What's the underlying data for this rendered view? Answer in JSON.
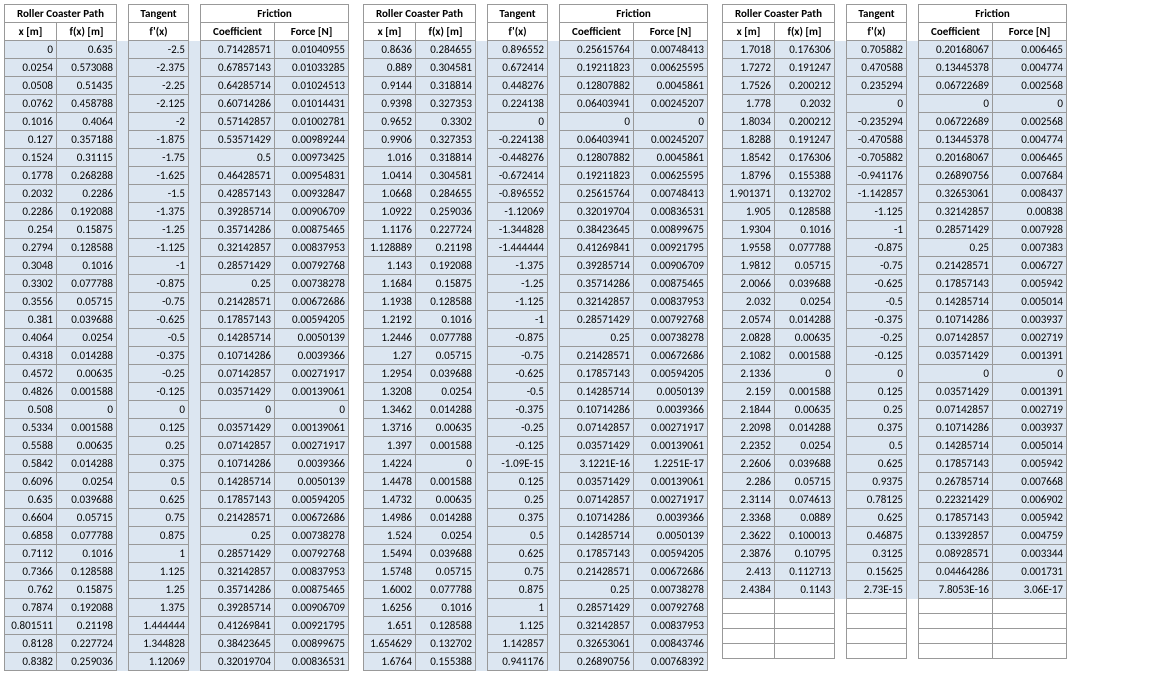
{
  "headers": {
    "roller": "Roller Coaster Path",
    "tangent": "Tangent",
    "friction": "Friction",
    "x": "x [m]",
    "fx": "f(x) [m]",
    "fpx": "f'(x)",
    "coef": "Coefficient",
    "force": "Force [N]"
  },
  "style": {
    "shaded_bg": "#dce6f1",
    "border": "#999999",
    "font": "Calibri",
    "font_size": 11
  },
  "blocks": [
    {
      "rows": [
        [
          "0",
          "0.635",
          "-2.5",
          "0.71428571",
          "0.01040955"
        ],
        [
          "0.0254",
          "0.573088",
          "-2.375",
          "0.67857143",
          "0.01033285"
        ],
        [
          "0.0508",
          "0.51435",
          "-2.25",
          "0.64285714",
          "0.01024513"
        ],
        [
          "0.0762",
          "0.458788",
          "-2.125",
          "0.60714286",
          "0.01014431"
        ],
        [
          "0.1016",
          "0.4064",
          "-2",
          "0.57142857",
          "0.01002781"
        ],
        [
          "0.127",
          "0.357188",
          "-1.875",
          "0.53571429",
          "0.00989244"
        ],
        [
          "0.1524",
          "0.31115",
          "-1.75",
          "0.5",
          "0.00973425"
        ],
        [
          "0.1778",
          "0.268288",
          "-1.625",
          "0.46428571",
          "0.00954831"
        ],
        [
          "0.2032",
          "0.2286",
          "-1.5",
          "0.42857143",
          "0.00932847"
        ],
        [
          "0.2286",
          "0.192088",
          "-1.375",
          "0.39285714",
          "0.00906709"
        ],
        [
          "0.254",
          "0.15875",
          "-1.25",
          "0.35714286",
          "0.00875465"
        ],
        [
          "0.2794",
          "0.128588",
          "-1.125",
          "0.32142857",
          "0.00837953"
        ],
        [
          "0.3048",
          "0.1016",
          "-1",
          "0.28571429",
          "0.00792768"
        ],
        [
          "0.3302",
          "0.077788",
          "-0.875",
          "0.25",
          "0.00738278"
        ],
        [
          "0.3556",
          "0.05715",
          "-0.75",
          "0.21428571",
          "0.00672686"
        ],
        [
          "0.381",
          "0.039688",
          "-0.625",
          "0.17857143",
          "0.00594205"
        ],
        [
          "0.4064",
          "0.0254",
          "-0.5",
          "0.14285714",
          "0.0050139"
        ],
        [
          "0.4318",
          "0.014288",
          "-0.375",
          "0.10714286",
          "0.0039366"
        ],
        [
          "0.4572",
          "0.00635",
          "-0.25",
          "0.07142857",
          "0.00271917"
        ],
        [
          "0.4826",
          "0.001588",
          "-0.125",
          "0.03571429",
          "0.00139061"
        ],
        [
          "0.508",
          "0",
          "0",
          "0",
          "0"
        ],
        [
          "0.5334",
          "0.001588",
          "0.125",
          "0.03571429",
          "0.00139061"
        ],
        [
          "0.5588",
          "0.00635",
          "0.25",
          "0.07142857",
          "0.00271917"
        ],
        [
          "0.5842",
          "0.014288",
          "0.375",
          "0.10714286",
          "0.0039366"
        ],
        [
          "0.6096",
          "0.0254",
          "0.5",
          "0.14285714",
          "0.0050139"
        ],
        [
          "0.635",
          "0.039688",
          "0.625",
          "0.17857143",
          "0.00594205"
        ],
        [
          "0.6604",
          "0.05715",
          "0.75",
          "0.21428571",
          "0.00672686"
        ],
        [
          "0.6858",
          "0.077788",
          "0.875",
          "0.25",
          "0.00738278"
        ],
        [
          "0.7112",
          "0.1016",
          "1",
          "0.28571429",
          "0.00792768"
        ],
        [
          "0.7366",
          "0.128588",
          "1.125",
          "0.32142857",
          "0.00837953"
        ],
        [
          "0.762",
          "0.15875",
          "1.25",
          "0.35714286",
          "0.00875465"
        ],
        [
          "0.7874",
          "0.192088",
          "1.375",
          "0.39285714",
          "0.00906709"
        ],
        [
          "0.801511",
          "0.21198",
          "1.444444",
          "0.41269841",
          "0.00921795"
        ],
        [
          "0.8128",
          "0.227724",
          "1.344828",
          "0.38423645",
          "0.00899675"
        ],
        [
          "0.8382",
          "0.259036",
          "1.12069",
          "0.32019704",
          "0.00836531"
        ]
      ]
    },
    {
      "rows": [
        [
          "0.8636",
          "0.284655",
          "0.896552",
          "0.25615764",
          "0.00748413"
        ],
        [
          "0.889",
          "0.304581",
          "0.672414",
          "0.19211823",
          "0.00625595"
        ],
        [
          "0.9144",
          "0.318814",
          "0.448276",
          "0.12807882",
          "0.0045861"
        ],
        [
          "0.9398",
          "0.327353",
          "0.224138",
          "0.06403941",
          "0.00245207"
        ],
        [
          "0.9652",
          "0.3302",
          "0",
          "0",
          "0"
        ],
        [
          "0.9906",
          "0.327353",
          "-0.224138",
          "0.06403941",
          "0.00245207"
        ],
        [
          "1.016",
          "0.318814",
          "-0.448276",
          "0.12807882",
          "0.0045861"
        ],
        [
          "1.0414",
          "0.304581",
          "-0.672414",
          "0.19211823",
          "0.00625595"
        ],
        [
          "1.0668",
          "0.284655",
          "-0.896552",
          "0.25615764",
          "0.00748413"
        ],
        [
          "1.0922",
          "0.259036",
          "-1.12069",
          "0.32019704",
          "0.00836531"
        ],
        [
          "1.1176",
          "0.227724",
          "-1.344828",
          "0.38423645",
          "0.00899675"
        ],
        [
          "1.128889",
          "0.21198",
          "-1.444444",
          "0.41269841",
          "0.00921795"
        ],
        [
          "1.143",
          "0.192088",
          "-1.375",
          "0.39285714",
          "0.00906709"
        ],
        [
          "1.1684",
          "0.15875",
          "-1.25",
          "0.35714286",
          "0.00875465"
        ],
        [
          "1.1938",
          "0.128588",
          "-1.125",
          "0.32142857",
          "0.00837953"
        ],
        [
          "1.2192",
          "0.1016",
          "-1",
          "0.28571429",
          "0.00792768"
        ],
        [
          "1.2446",
          "0.077788",
          "-0.875",
          "0.25",
          "0.00738278"
        ],
        [
          "1.27",
          "0.05715",
          "-0.75",
          "0.21428571",
          "0.00672686"
        ],
        [
          "1.2954",
          "0.039688",
          "-0.625",
          "0.17857143",
          "0.00594205"
        ],
        [
          "1.3208",
          "0.0254",
          "-0.5",
          "0.14285714",
          "0.0050139"
        ],
        [
          "1.3462",
          "0.014288",
          "-0.375",
          "0.10714286",
          "0.0039366"
        ],
        [
          "1.3716",
          "0.00635",
          "-0.25",
          "0.07142857",
          "0.00271917"
        ],
        [
          "1.397",
          "0.001588",
          "-0.125",
          "0.03571429",
          "0.00139061"
        ],
        [
          "1.4224",
          "0",
          "-1.09E-15",
          "3.1221E-16",
          "1.2251E-17"
        ],
        [
          "1.4478",
          "0.001588",
          "0.125",
          "0.03571429",
          "0.00139061"
        ],
        [
          "1.4732",
          "0.00635",
          "0.25",
          "0.07142857",
          "0.00271917"
        ],
        [
          "1.4986",
          "0.014288",
          "0.375",
          "0.10714286",
          "0.0039366"
        ],
        [
          "1.524",
          "0.0254",
          "0.5",
          "0.14285714",
          "0.0050139"
        ],
        [
          "1.5494",
          "0.039688",
          "0.625",
          "0.17857143",
          "0.00594205"
        ],
        [
          "1.5748",
          "0.05715",
          "0.75",
          "0.21428571",
          "0.00672686"
        ],
        [
          "1.6002",
          "0.077788",
          "0.875",
          "0.25",
          "0.00738278"
        ],
        [
          "1.6256",
          "0.1016",
          "1",
          "0.28571429",
          "0.00792768"
        ],
        [
          "1.651",
          "0.128588",
          "1.125",
          "0.32142857",
          "0.00837953"
        ],
        [
          "1.654629",
          "0.132702",
          "1.142857",
          "0.32653061",
          "0.00843746"
        ],
        [
          "1.6764",
          "0.155388",
          "0.941176",
          "0.26890756",
          "0.00768392"
        ]
      ]
    },
    {
      "rows": [
        [
          "1.7018",
          "0.176306",
          "0.705882",
          "0.20168067",
          "0.006465"
        ],
        [
          "1.7272",
          "0.191247",
          "0.470588",
          "0.13445378",
          "0.004774"
        ],
        [
          "1.7526",
          "0.200212",
          "0.235294",
          "0.06722689",
          "0.002568"
        ],
        [
          "1.778",
          "0.2032",
          "0",
          "0",
          "0"
        ],
        [
          "1.8034",
          "0.200212",
          "-0.235294",
          "0.06722689",
          "0.002568"
        ],
        [
          "1.8288",
          "0.191247",
          "-0.470588",
          "0.13445378",
          "0.004774"
        ],
        [
          "1.8542",
          "0.176306",
          "-0.705882",
          "0.20168067",
          "0.006465"
        ],
        [
          "1.8796",
          "0.155388",
          "-0.941176",
          "0.26890756",
          "0.007684"
        ],
        [
          "1.901371",
          "0.132702",
          "-1.142857",
          "0.32653061",
          "0.008437"
        ],
        [
          "1.905",
          "0.128588",
          "-1.125",
          "0.32142857",
          "0.00838"
        ],
        [
          "1.9304",
          "0.1016",
          "-1",
          "0.28571429",
          "0.007928"
        ],
        [
          "1.9558",
          "0.077788",
          "-0.875",
          "0.25",
          "0.007383"
        ],
        [
          "1.9812",
          "0.05715",
          "-0.75",
          "0.21428571",
          "0.006727"
        ],
        [
          "2.0066",
          "0.039688",
          "-0.625",
          "0.17857143",
          "0.005942"
        ],
        [
          "2.032",
          "0.0254",
          "-0.5",
          "0.14285714",
          "0.005014"
        ],
        [
          "2.0574",
          "0.014288",
          "-0.375",
          "0.10714286",
          "0.003937"
        ],
        [
          "2.0828",
          "0.00635",
          "-0.25",
          "0.07142857",
          "0.002719"
        ],
        [
          "2.1082",
          "0.001588",
          "-0.125",
          "0.03571429",
          "0.001391"
        ],
        [
          "2.1336",
          "0",
          "0",
          "0",
          "0"
        ],
        [
          "2.159",
          "0.001588",
          "0.125",
          "0.03571429",
          "0.001391"
        ],
        [
          "2.1844",
          "0.00635",
          "0.25",
          "0.07142857",
          "0.002719"
        ],
        [
          "2.2098",
          "0.014288",
          "0.375",
          "0.10714286",
          "0.003937"
        ],
        [
          "2.2352",
          "0.0254",
          "0.5",
          "0.14285714",
          "0.005014"
        ],
        [
          "2.2606",
          "0.039688",
          "0.625",
          "0.17857143",
          "0.005942"
        ],
        [
          "2.286",
          "0.05715",
          "0.9375",
          "0.26785714",
          "0.007668"
        ],
        [
          "2.3114",
          "0.074613",
          "0.78125",
          "0.22321429",
          "0.006902"
        ],
        [
          "2.3368",
          "0.0889",
          "0.625",
          "0.17857143",
          "0.005942"
        ],
        [
          "2.3622",
          "0.100013",
          "0.46875",
          "0.13392857",
          "0.004759"
        ],
        [
          "2.3876",
          "0.10795",
          "0.3125",
          "0.08928571",
          "0.003344"
        ],
        [
          "2.413",
          "0.112713",
          "0.15625",
          "0.04464286",
          "0.001731"
        ],
        [
          "2.4384",
          "0.1143",
          "2.73E-15",
          "7.8053E-16",
          "3.06E-17"
        ]
      ]
    }
  ]
}
